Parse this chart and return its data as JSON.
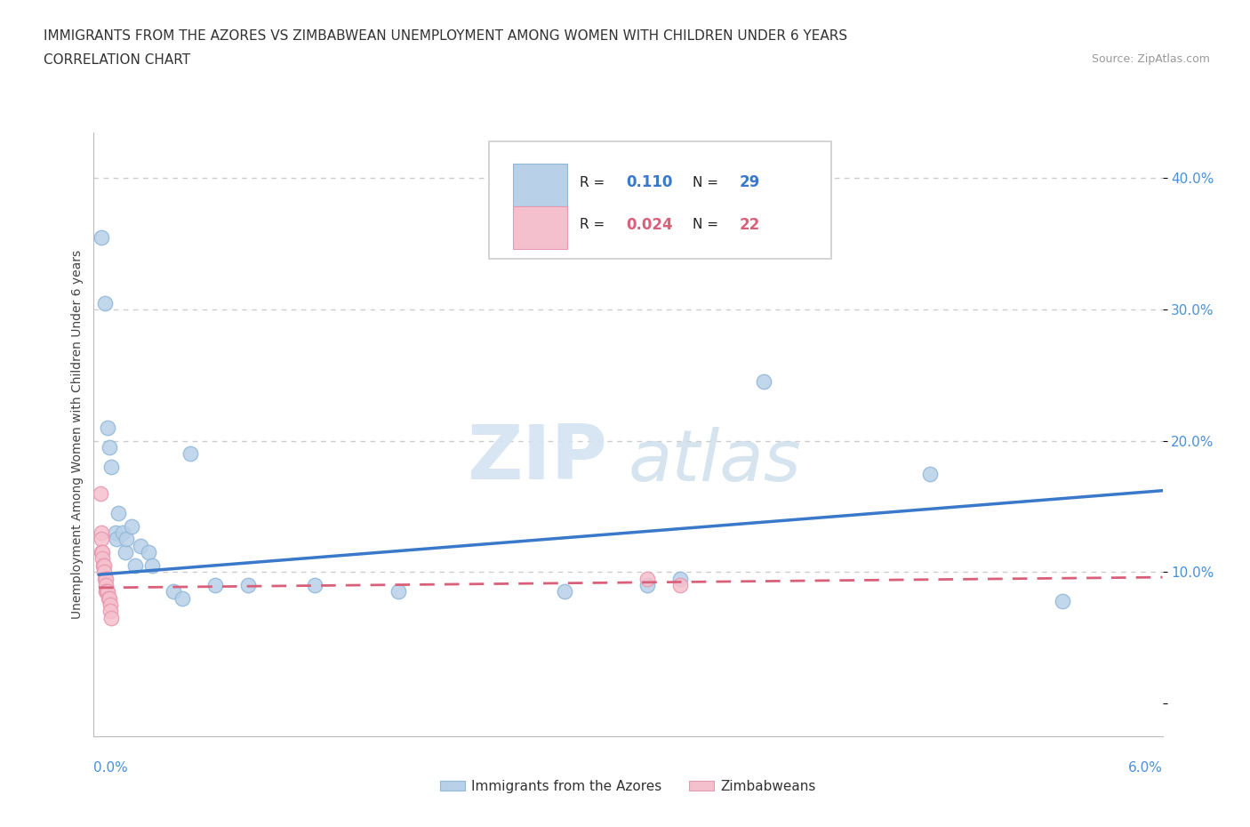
{
  "title": "IMMIGRANTS FROM THE AZORES VS ZIMBABWEAN UNEMPLOYMENT AMONG WOMEN WITH CHILDREN UNDER 6 YEARS",
  "subtitle": "CORRELATION CHART",
  "source": "Source: ZipAtlas.com",
  "ylabel": "Unemployment Among Women with Children Under 6 years",
  "xmin": -0.0003,
  "xmax": 0.064,
  "ymin": -0.025,
  "ymax": 0.435,
  "blue_R": "0.110",
  "blue_N": "29",
  "pink_R": "0.024",
  "pink_N": "22",
  "blue_color": "#b8d0e8",
  "pink_color": "#f5c0ce",
  "blue_edge_color": "#90b8d8",
  "pink_edge_color": "#e898b0",
  "blue_line_color": "#3a78c9",
  "pink_line_color": "#d9607a",
  "legend_blue_label": "Immigrants from the Azores",
  "legend_pink_label": "Zimbabweans",
  "watermark_zip": "ZIP",
  "watermark_atlas": "atlas",
  "background_color": "#ffffff",
  "grid_color": "#cccccc",
  "ytick_color": "#4a90d9",
  "xlabel_color": "#4a90d9",
  "blue_scatter": [
    [
      0.00018,
      0.355
    ],
    [
      0.00035,
      0.305
    ],
    [
      0.00055,
      0.21
    ],
    [
      0.00065,
      0.195
    ],
    [
      0.00075,
      0.18
    ],
    [
      0.001,
      0.13
    ],
    [
      0.00105,
      0.125
    ],
    [
      0.0012,
      0.145
    ],
    [
      0.00145,
      0.13
    ],
    [
      0.0016,
      0.115
    ],
    [
      0.00165,
      0.125
    ],
    [
      0.002,
      0.135
    ],
    [
      0.0022,
      0.105
    ],
    [
      0.0025,
      0.12
    ],
    [
      0.003,
      0.115
    ],
    [
      0.0032,
      0.105
    ],
    [
      0.0045,
      0.085
    ],
    [
      0.005,
      0.08
    ],
    [
      0.0055,
      0.19
    ],
    [
      0.007,
      0.09
    ],
    [
      0.009,
      0.09
    ],
    [
      0.013,
      0.09
    ],
    [
      0.018,
      0.085
    ],
    [
      0.028,
      0.085
    ],
    [
      0.033,
      0.09
    ],
    [
      0.035,
      0.095
    ],
    [
      0.04,
      0.245
    ],
    [
      0.05,
      0.175
    ],
    [
      0.058,
      0.078
    ]
  ],
  "pink_scatter": [
    [
      0.0001,
      0.16
    ],
    [
      0.00015,
      0.13
    ],
    [
      0.00015,
      0.125
    ],
    [
      0.00018,
      0.115
    ],
    [
      0.0002,
      0.115
    ],
    [
      0.00022,
      0.11
    ],
    [
      0.00025,
      0.105
    ],
    [
      0.0003,
      0.105
    ],
    [
      0.00032,
      0.1
    ],
    [
      0.00035,
      0.095
    ],
    [
      0.0004,
      0.095
    ],
    [
      0.00042,
      0.09
    ],
    [
      0.00045,
      0.085
    ],
    [
      0.0005,
      0.085
    ],
    [
      0.00055,
      0.085
    ],
    [
      0.0006,
      0.08
    ],
    [
      0.00065,
      0.08
    ],
    [
      0.00068,
      0.075
    ],
    [
      0.0007,
      0.07
    ],
    [
      0.00075,
      0.065
    ],
    [
      0.033,
      0.095
    ],
    [
      0.035,
      0.09
    ]
  ],
  "blue_trend_x": [
    0.0,
    0.064
  ],
  "blue_trend_y": [
    0.098,
    0.162
  ],
  "pink_trend_x": [
    0.0,
    0.064
  ],
  "pink_trend_y": [
    0.088,
    0.096
  ],
  "ytick_vals": [
    0.0,
    0.1,
    0.2,
    0.3,
    0.4
  ],
  "ytick_labels": [
    "",
    "10.0%",
    "20.0%",
    "30.0%",
    "40.0%"
  ]
}
